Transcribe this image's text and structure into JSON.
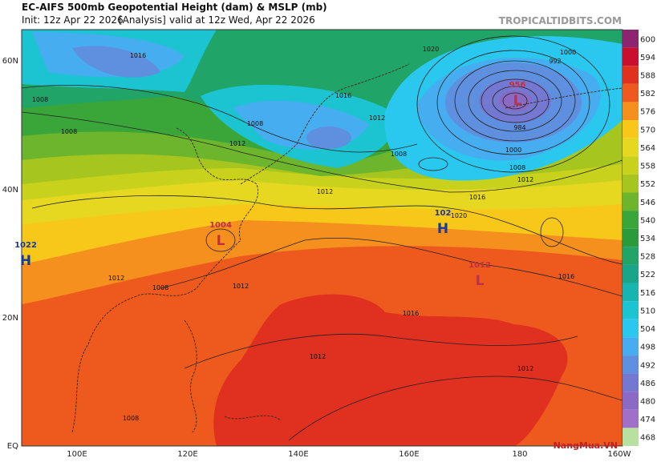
{
  "header": {
    "title": "EC-AIFS 500mb Geopotential Height (dam) & MSLP (mb)",
    "init": "Init: 12z Apr 22 2026",
    "run": "[Analysis]",
    "valid": "valid at 12z Wed, Apr 22 2026",
    "site": "TROPICALTIDBITS.COM"
  },
  "latitude_labels": [
    "60N",
    "40N",
    "20N",
    "EQ"
  ],
  "longitude_labels": [
    "100E",
    "120E",
    "140E",
    "160E",
    "180",
    "160W"
  ],
  "colorbar": [
    600,
    594,
    588,
    582,
    576,
    570,
    564,
    558,
    552,
    546,
    540,
    534,
    528,
    522,
    516,
    510,
    504,
    498,
    492,
    486,
    480,
    474,
    468
  ],
  "pressure_centers": [
    {
      "letter": "L",
      "value": "956"
    },
    {
      "letter": "H",
      "value": "1022"
    },
    {
      "letter": "L",
      "value": "1004"
    },
    {
      "letter": "H",
      "value": "102"
    },
    {
      "letter": "L",
      "value": "1012"
    }
  ],
  "contour_labels": [
    "1016",
    "1020",
    "1000",
    "992",
    "1016",
    "1012",
    "1008",
    "1012",
    "1008",
    "1008",
    "1012",
    "1016",
    "1012",
    "1020",
    "1012",
    "1008",
    "1012",
    "1016",
    "1016",
    "1012",
    "1012",
    "1008",
    "984",
    "1000",
    "1008",
    "1008"
  ],
  "watermark": "NangMua.VN"
}
